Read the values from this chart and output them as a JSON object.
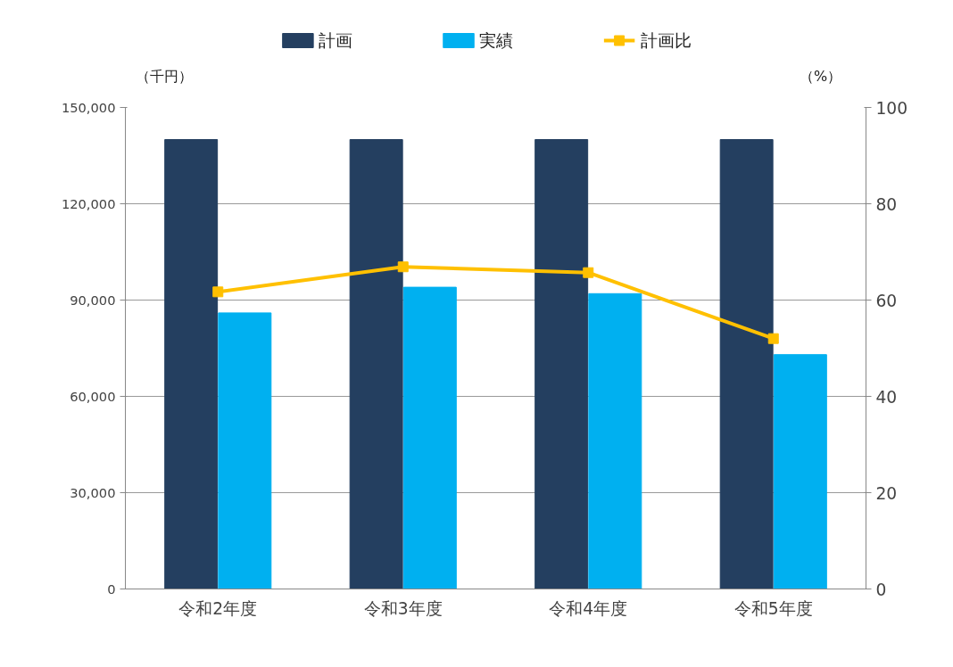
{
  "chart_data": {
    "type": "bar",
    "categories": [
      "令和2年度",
      "令和3年度",
      "令和4年度",
      "令和5年度"
    ],
    "series": [
      {
        "name": "計画",
        "color": "#243f60",
        "values": [
          140000,
          140000,
          140000,
          140000
        ]
      },
      {
        "name": "実績",
        "color": "#00b0f0",
        "values": [
          86000,
          94000,
          92000,
          73000
        ]
      },
      {
        "name": "計画比",
        "type": "line",
        "axis": "y2",
        "color": "#ffc000",
        "values": [
          61.7,
          66.9,
          65.7,
          52.0
        ],
        "marker": "square"
      }
    ],
    "ylim": [
      0,
      150000
    ],
    "yticks": [
      {
        "value": 0,
        "label": "0"
      },
      {
        "value": 30000,
        "label": "30,000"
      },
      {
        "value": 60000,
        "label": "60,000"
      },
      {
        "value": 90000,
        "label": "90,000"
      },
      {
        "value": 120000,
        "label": "120,000"
      },
      {
        "value": 150000,
        "label": "150,000"
      }
    ],
    "y2lim": [
      0,
      100
    ],
    "y2ticks": [
      0,
      20,
      40,
      60,
      80,
      100
    ],
    "grid": "y",
    "legend": "top",
    "annotations": [
      "（千円）",
      "（%）"
    ]
  }
}
